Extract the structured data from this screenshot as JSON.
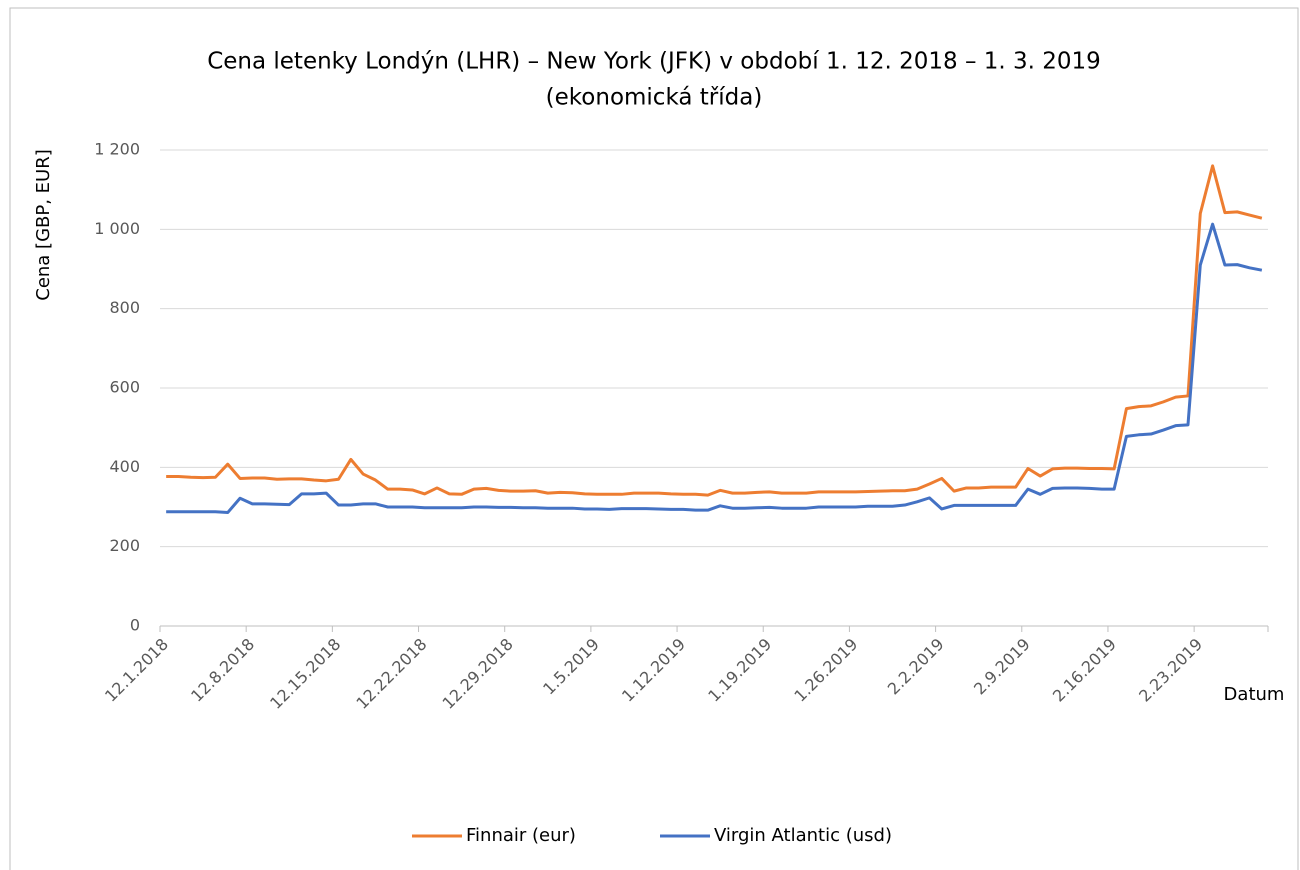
{
  "chart_data": {
    "type": "line",
    "title": [
      "Cena letenky Londýn (LHR) – New York (JFK)  v období 1. 12. 2018 – 1. 3. 2019",
      "(ekonomická třída)"
    ],
    "y_label": "Cena [GBP, EUR]",
    "x_label": "Datum",
    "categories": [
      "12.1.2018",
      null,
      null,
      null,
      null,
      null,
      null,
      "12.8.2018",
      null,
      null,
      null,
      null,
      null,
      null,
      "12.15.2018",
      null,
      null,
      null,
      null,
      null,
      null,
      "12.22.2018",
      null,
      null,
      null,
      null,
      null,
      null,
      "12.29.2018",
      null,
      null,
      null,
      null,
      null,
      null,
      "1.5.2019",
      null,
      null,
      null,
      null,
      null,
      null,
      "1.12.2019",
      null,
      null,
      null,
      null,
      null,
      null,
      "1.19.2019",
      null,
      null,
      null,
      null,
      null,
      null,
      "1.26.2019",
      null,
      null,
      null,
      null,
      null,
      null,
      "2.2.2019",
      null,
      null,
      null,
      null,
      null,
      null,
      "2.9.2019",
      null,
      null,
      null,
      null,
      null,
      null,
      "2.16.2019",
      null,
      null,
      null,
      null,
      null,
      null,
      "2.23.2019",
      null,
      null,
      null,
      null,
      null
    ],
    "series": [
      {
        "name": "Finnair (eur)",
        "color": "#ed7d31",
        "values": [
          377,
          377,
          375,
          374,
          375,
          408,
          372,
          373,
          373,
          370,
          371,
          371,
          368,
          366,
          370,
          420,
          383,
          368,
          345,
          345,
          343,
          333,
          348,
          333,
          332,
          345,
          347,
          342,
          340,
          340,
          341,
          335,
          337,
          336,
          333,
          332,
          332,
          332,
          335,
          335,
          335,
          333,
          332,
          332,
          330,
          342,
          335,
          335,
          337,
          338,
          335,
          335,
          335,
          338,
          338,
          338,
          338,
          339,
          340,
          341,
          341,
          345,
          358,
          372,
          340,
          348,
          348,
          350,
          350,
          350,
          397,
          378,
          396,
          398,
          398,
          397,
          397,
          396,
          548,
          553,
          555,
          565,
          577,
          580,
          1040,
          1160,
          1042,
          1044,
          1036,
          1028
        ]
      },
      {
        "name": "Virgin Atlantic (usd)",
        "color": "#4472c4",
        "values": [
          288,
          288,
          288,
          288,
          288,
          286,
          322,
          308,
          308,
          307,
          306,
          333,
          333,
          335,
          305,
          305,
          308,
          308,
          300,
          300,
          300,
          298,
          298,
          298,
          298,
          300,
          300,
          299,
          299,
          298,
          298,
          297,
          297,
          297,
          295,
          295,
          294,
          296,
          296,
          296,
          295,
          294,
          294,
          292,
          292,
          303,
          297,
          297,
          298,
          299,
          297,
          297,
          297,
          300,
          300,
          300,
          300,
          302,
          302,
          302,
          305,
          313,
          323,
          295,
          304,
          304,
          304,
          304,
          304,
          304,
          345,
          332,
          347,
          348,
          348,
          347,
          345,
          345,
          478,
          482,
          484,
          494,
          505,
          507,
          910,
          1013,
          910,
          911,
          903,
          897
        ]
      }
    ],
    "ylim": [
      0,
      1200
    ],
    "yticks": [
      0,
      200,
      400,
      600,
      800,
      {
        "value": 1000,
        "label": "1 000"
      },
      {
        "value": 1200,
        "label": "1 200"
      }
    ],
    "grid": true,
    "legend": "bottom"
  }
}
